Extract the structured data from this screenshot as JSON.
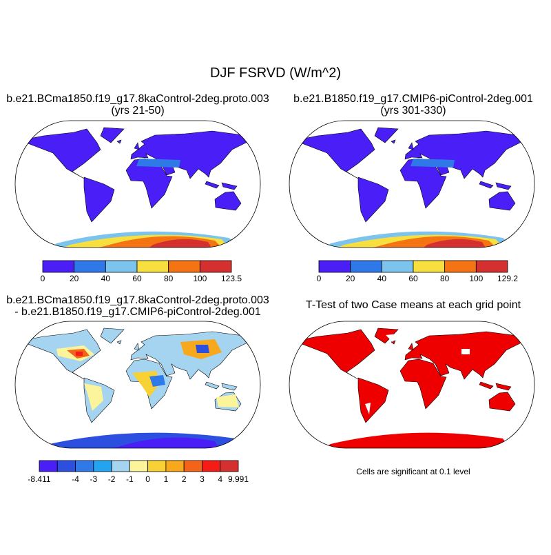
{
  "title": "DJF FSRVD (W/m^2)",
  "panels": [
    {
      "title_lines": [
        "b.e21.BCma1850.f19_g17.8kaControl-2deg.proto.003",
        "(yrs 21-50)"
      ],
      "colorbar": {
        "colors": [
          "#4a1ef7",
          "#2f78e8",
          "#7cc4ee",
          "#f8df40",
          "#f47414",
          "#d43030"
        ],
        "labels": [
          "0",
          "20",
          "40",
          "60",
          "80",
          "100",
          "123.5"
        ]
      }
    },
    {
      "title_lines": [
        "b.e21.B1850.f19_g17.CMIP6-piControl-2deg.001",
        "(yrs 301-330)"
      ],
      "colorbar": {
        "colors": [
          "#4a1ef7",
          "#2f78e8",
          "#7cc4ee",
          "#f8df40",
          "#f47414",
          "#d43030"
        ],
        "labels": [
          "0",
          "20",
          "40",
          "60",
          "80",
          "100",
          "129.2"
        ]
      }
    },
    {
      "title_lines": [
        "b.e21.BCma1850.f19_g17.8kaControl-2deg.proto.003",
        "- b.e21.B1850.f19_g17.CMIP6-piControl-2deg.001"
      ],
      "colorbar": {
        "colors": [
          "#4a1ef7",
          "#2d4fe0",
          "#2f7ae8",
          "#22a4f0",
          "#a4d4f0",
          "#fbf49a",
          "#f8d234",
          "#f8a81c",
          "#f46418",
          "#f41c14",
          "#d43030"
        ],
        "labels": [
          "-8.411",
          "-4",
          "-3",
          "-2",
          "-1",
          "0",
          "1",
          "2",
          "3",
          "4",
          "9.991"
        ]
      }
    },
    {
      "title_lines": [
        "T-Test of two Case means at each grid point"
      ],
      "note": "Cells are significant at 0.1 level"
    }
  ]
}
